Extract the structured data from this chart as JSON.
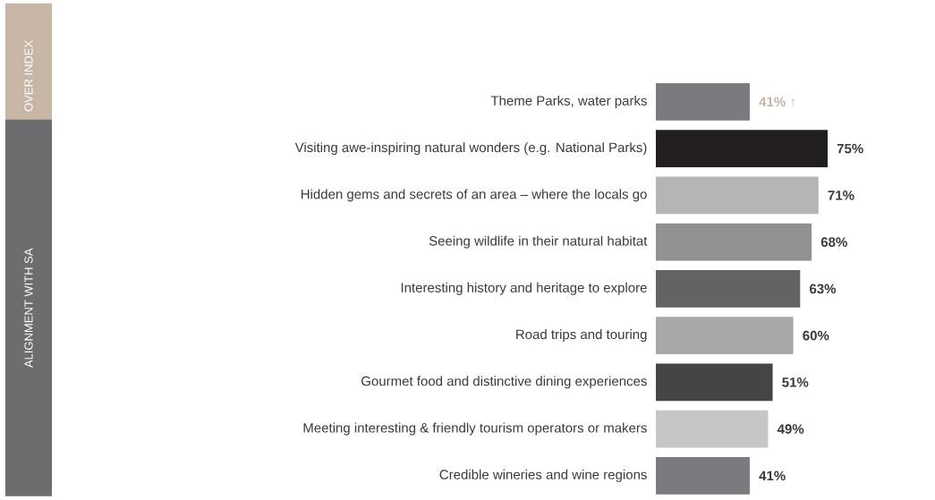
{
  "chart_data": {
    "type": "bar",
    "orientation": "horizontal",
    "categories": [
      "Theme Parks, water parks",
      "Visiting awe-inspiring natural wonders (e.g. National Parks)",
      "Hidden gems and secrets of an area – where the locals go",
      "Seeing wildlife in their natural habitat",
      "Interesting history and heritage to explore",
      "Road trips and touring",
      "Gourmet food and distinctive dining experiences",
      "Meeting interesting & friendly tourism operators or makers",
      "Credible wineries and wine regions"
    ],
    "values": [
      41,
      75,
      71,
      68,
      63,
      60,
      51,
      49,
      41
    ],
    "colors": [
      "#7b7b7f",
      "#231f20",
      "#b5b5b8",
      "#919194",
      "#636365",
      "#a8a8ab",
      "#454547",
      "#c6c6c8",
      "#7b7b7f"
    ],
    "value_labels": [
      "41% ↑",
      "75%",
      "71%",
      "68%",
      "63%",
      "60%",
      "51%",
      "49%",
      "41%"
    ],
    "annotations": [
      "OVER INDEX",
      "ALIGNMENT WITH SA"
    ]
  }
}
